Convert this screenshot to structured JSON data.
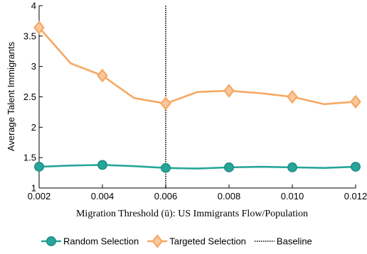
{
  "chart_data": {
    "type": "line",
    "title": "",
    "xlabel": "Migration Threshold (ū): US Immigrants Flow/Population",
    "ylabel": "Average Talent Immigrants",
    "xlim": [
      0.002,
      0.012
    ],
    "ylim": [
      1,
      4
    ],
    "x_ticks": [
      0.002,
      0.004,
      0.006,
      0.008,
      0.01,
      0.012
    ],
    "x_tick_labels": [
      "0.002",
      "0.004",
      "0.006",
      "0.008",
      "0.010",
      "0.012"
    ],
    "y_ticks": [
      1,
      1.5,
      2,
      2.5,
      3,
      3.5,
      4
    ],
    "y_tick_labels": [
      "1",
      "1.5",
      "2",
      "2.5",
      "3",
      "3.5",
      "4"
    ],
    "grid": false,
    "legend_position": "bottom",
    "baseline": {
      "name": "Baseline",
      "x": 0.006,
      "color": "#000000"
    },
    "series": [
      {
        "name": "Random Selection",
        "color": "#26a69a",
        "marker": "circle",
        "x": [
          0.002,
          0.003,
          0.004,
          0.005,
          0.006,
          0.007,
          0.008,
          0.009,
          0.01,
          0.011,
          0.012
        ],
        "values": [
          1.35,
          1.37,
          1.38,
          1.36,
          1.33,
          1.32,
          1.34,
          1.35,
          1.34,
          1.33,
          1.35
        ],
        "marker_x": [
          0.002,
          0.004,
          0.006,
          0.008,
          0.01,
          0.012
        ]
      },
      {
        "name": "Targeted Selection",
        "color": "#f5a862",
        "marker": "diamond",
        "x": [
          0.002,
          0.003,
          0.004,
          0.005,
          0.006,
          0.007,
          0.008,
          0.009,
          0.01,
          0.011,
          0.012
        ],
        "values": [
          3.64,
          3.05,
          2.85,
          2.48,
          2.39,
          2.58,
          2.6,
          2.56,
          2.5,
          2.38,
          2.42
        ],
        "marker_x": [
          0.002,
          0.004,
          0.006,
          0.008,
          0.01,
          0.012
        ]
      }
    ]
  }
}
